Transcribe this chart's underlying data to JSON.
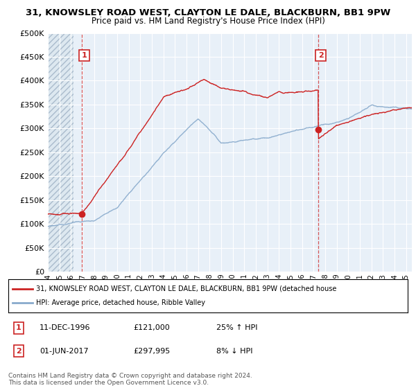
{
  "title": "31, KNOWSLEY ROAD WEST, CLAYTON LE DALE, BLACKBURN, BB1 9PW",
  "subtitle": "Price paid vs. HM Land Registry's House Price Index (HPI)",
  "ylim": [
    0,
    500000
  ],
  "yticks": [
    0,
    50000,
    100000,
    150000,
    200000,
    250000,
    300000,
    350000,
    400000,
    450000,
    500000
  ],
  "ytick_labels": [
    "£0",
    "£50K",
    "£100K",
    "£150K",
    "£200K",
    "£250K",
    "£300K",
    "£350K",
    "£400K",
    "£450K",
    "£500K"
  ],
  "line_red": "#cc2222",
  "line_blue": "#88aacc",
  "marker1_x": 1996.94,
  "marker1_y": 121000,
  "marker2_x": 2017.42,
  "marker2_y": 297995,
  "legend_red": "31, KNOWSLEY ROAD WEST, CLAYTON LE DALE, BLACKBURN, BB1 9PW (detached house",
  "legend_blue": "HPI: Average price, detached house, Ribble Valley",
  "ann1_date": "11-DEC-1996",
  "ann1_price": "£121,000",
  "ann1_hpi": "25% ↑ HPI",
  "ann2_date": "01-JUN-2017",
  "ann2_price": "£297,995",
  "ann2_hpi": "8% ↓ HPI",
  "footer": "Contains HM Land Registry data © Crown copyright and database right 2024.\nThis data is licensed under the Open Government Licence v3.0.",
  "xmin": 1994,
  "xmax": 2025.5,
  "plot_bg": "#e8f0f8",
  "hatch_bg": "#dde8f0"
}
